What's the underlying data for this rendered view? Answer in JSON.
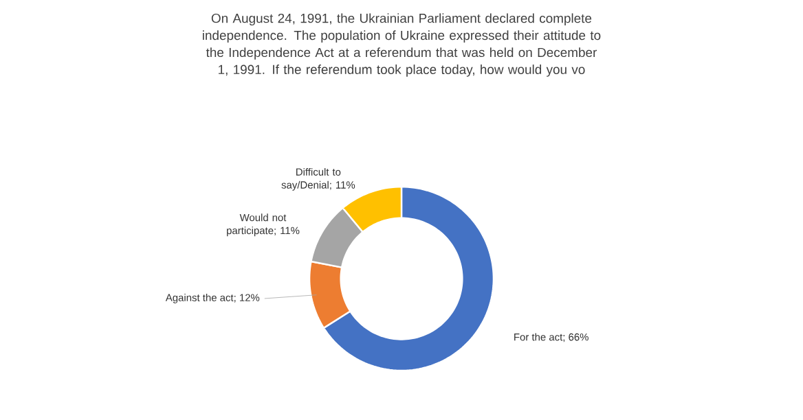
{
  "chart_data": {
    "type": "donut",
    "title": "On August 24, 1991,  the Ukrainian Parliament declared complete independence. The population of Ukraine expressed their attitude to the Independence Act at a referendum that was held on December 1, 1991.  If the referendum took place today, how would you vo",
    "categories": [
      "For the act",
      "Against the act",
      "Would not participate",
      "Difficult to say/Denial"
    ],
    "values": [
      66,
      12,
      11,
      11
    ],
    "value_labels": [
      "; 66%",
      "; 12%",
      "; 11%",
      "; 11%"
    ],
    "colors": [
      "#4472c4",
      "#ed7d31",
      "#a5a5a5",
      "#ffc000"
    ]
  }
}
